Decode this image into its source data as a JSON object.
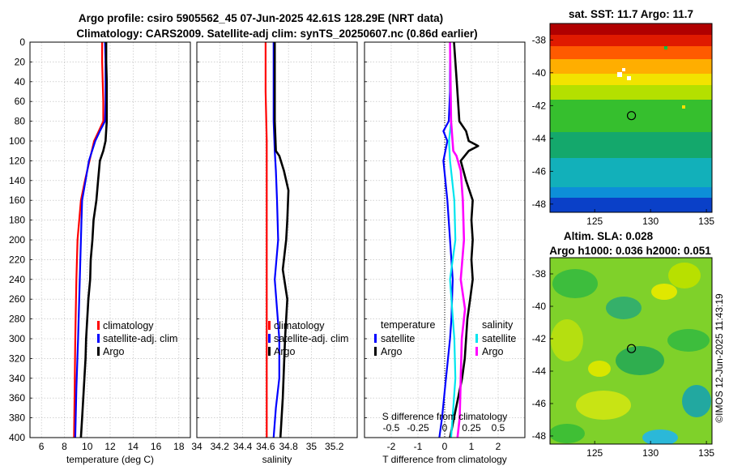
{
  "header": {
    "title_line1": "Argo profile: csiro 5905562_45 07-Jun-2025 42.61S 128.29E (NRT data)",
    "title_line2": "Climatology: CARS2009. Satellite-adj clim: synTS_20250607.nc (0.86d earlier)"
  },
  "colors": {
    "climatology": "#ff0000",
    "satellite": "#0000ff",
    "argo": "#000000",
    "s_satellite": "#00e5ee",
    "s_argo": "#ff00ff"
  },
  "chart_data": [
    {
      "type": "line",
      "id": "temperature",
      "xlabel": "temperature (deg C)",
      "ylabel": "",
      "xlim": [
        5,
        19
      ],
      "ylim": [
        0,
        400
      ],
      "y_reversed": true,
      "x_ticks": [
        6,
        8,
        10,
        12,
        14,
        16,
        18
      ],
      "y_ticks": [
        0,
        20,
        40,
        60,
        80,
        100,
        120,
        140,
        160,
        180,
        200,
        220,
        240,
        260,
        280,
        300,
        320,
        340,
        360,
        380,
        400
      ],
      "grid": true,
      "legend": {
        "position": "lower-right",
        "entries": [
          "climatology",
          "satellite-adj. clim",
          "Argo"
        ]
      },
      "series": [
        {
          "name": "climatology",
          "color": "#ff0000",
          "depth": [
            0,
            20,
            40,
            60,
            80,
            90,
            100,
            120,
            140,
            160,
            180,
            200,
            240,
            300,
            350,
            400
          ],
          "values": [
            11.3,
            11.3,
            11.35,
            11.4,
            11.4,
            11.0,
            10.6,
            10.2,
            9.8,
            9.45,
            9.3,
            9.15,
            9.05,
            8.95,
            8.9,
            8.85
          ]
        },
        {
          "name": "satellite-adj. clim",
          "color": "#0000ff",
          "depth": [
            0,
            20,
            40,
            60,
            80,
            90,
            100,
            120,
            140,
            160,
            180,
            200,
            240,
            300,
            350,
            400
          ],
          "values": [
            11.55,
            11.6,
            11.6,
            11.6,
            11.55,
            11.1,
            10.7,
            10.15,
            9.85,
            9.55,
            9.5,
            9.45,
            9.35,
            9.2,
            9.05,
            8.95
          ]
        },
        {
          "name": "Argo",
          "color": "#000000",
          "depth": [
            0,
            20,
            40,
            60,
            80,
            100,
            110,
            120,
            140,
            160,
            180,
            200,
            220,
            240,
            260,
            280,
            300,
            320,
            340,
            360,
            380,
            400
          ],
          "values": [
            11.65,
            11.65,
            11.7,
            11.7,
            11.7,
            11.6,
            11.4,
            11.1,
            10.95,
            10.8,
            10.55,
            10.45,
            10.3,
            10.25,
            10.1,
            10.0,
            9.9,
            9.85,
            9.75,
            9.65,
            9.55,
            9.45
          ]
        }
      ]
    },
    {
      "type": "line",
      "id": "salinity",
      "xlabel": "salinity",
      "ylabel": "",
      "xlim": [
        34,
        35.4
      ],
      "ylim": [
        0,
        400
      ],
      "y_reversed": true,
      "x_ticks": [
        34,
        34.2,
        34.4,
        34.6,
        34.8,
        35,
        35.2
      ],
      "x_tick_labels": [
        "34",
        "34.2",
        "34.4",
        "34.6",
        "34.8",
        "35",
        "35.2"
      ],
      "grid": true,
      "legend": {
        "position": "lower-right",
        "entries": [
          "climatology",
          "satellite-adj. clim",
          "Argo"
        ]
      },
      "series": [
        {
          "name": "climatology",
          "color": "#ff0000",
          "depth": [
            0,
            50,
            100,
            150,
            200,
            250,
            300,
            350,
            400
          ],
          "values": [
            34.6,
            34.6,
            34.61,
            34.61,
            34.61,
            34.61,
            34.61,
            34.61,
            34.61
          ]
        },
        {
          "name": "satellite-adj. clim",
          "color": "#0000ff",
          "depth": [
            0,
            40,
            80,
            110,
            130,
            160,
            200,
            240,
            270,
            300,
            340,
            370,
            400
          ],
          "values": [
            34.67,
            34.67,
            34.67,
            34.68,
            34.69,
            34.7,
            34.71,
            34.68,
            34.7,
            34.72,
            34.72,
            34.69,
            34.67
          ]
        },
        {
          "name": "Argo",
          "color": "#000000",
          "depth": [
            0,
            40,
            80,
            110,
            115,
            130,
            150,
            180,
            200,
            230,
            260,
            300,
            330,
            360,
            400
          ],
          "values": [
            34.68,
            34.68,
            34.68,
            34.69,
            34.72,
            34.76,
            34.8,
            34.79,
            34.78,
            34.75,
            34.79,
            34.77,
            34.76,
            34.75,
            34.73
          ]
        }
      ]
    },
    {
      "type": "line",
      "id": "difference",
      "xlabel": "T difference from climatology",
      "xlabel_top": "S difference from climatology",
      "xlim": [
        -3,
        3
      ],
      "ylim": [
        0,
        400
      ],
      "y_reversed": true,
      "x_ticks": [
        -2,
        -1,
        0,
        1,
        2
      ],
      "x_tick_labels": [
        "-2",
        "-1",
        "0",
        "1",
        "2"
      ],
      "s_ticks": [
        -0.5,
        -0.25,
        0,
        0.25,
        0.5
      ],
      "s_tick_labels": [
        "-0.5",
        "-0.25",
        "0",
        "0.25",
        "0.5"
      ],
      "grid": true,
      "legend": {
        "position": "lower",
        "temperature_heading": "temperature",
        "salinity_heading": "salinity",
        "temperature_entries": [
          "satellite",
          "Argo"
        ],
        "salinity_entries": [
          "satellite",
          "Argo"
        ]
      },
      "series": [
        {
          "name": "T satellite",
          "color": "#0000ff",
          "depth": [
            0,
            50,
            80,
            90,
            100,
            120,
            160,
            200,
            240,
            280,
            300,
            340,
            380,
            400
          ],
          "values": [
            0.2,
            0.2,
            0.15,
            -0.05,
            0.1,
            -0.05,
            0.1,
            0.2,
            0.3,
            0.25,
            0.2,
            0.05,
            -0.1,
            -0.2
          ]
        },
        {
          "name": "T Argo",
          "color": "#000000",
          "depth": [
            0,
            20,
            40,
            60,
            80,
            90,
            100,
            105,
            110,
            120,
            140,
            160,
            180,
            200,
            220,
            240,
            260,
            280,
            300,
            320,
            340,
            360,
            380,
            400
          ],
          "values": [
            0.35,
            0.4,
            0.45,
            0.5,
            0.55,
            0.8,
            0.9,
            1.25,
            0.9,
            0.6,
            0.8,
            1.05,
            1.0,
            1.05,
            1.0,
            1.05,
            0.95,
            0.85,
            0.8,
            0.75,
            0.65,
            0.5,
            0.35,
            0.2
          ]
        },
        {
          "name": "S satellite",
          "color": "#00e5ee",
          "depth": [
            0,
            80,
            100,
            120,
            160,
            200,
            240,
            270,
            300,
            340,
            370,
            400
          ],
          "values": [
            0.05,
            0.06,
            0.04,
            0.05,
            0.09,
            0.1,
            0.05,
            0.07,
            0.09,
            0.1,
            0.08,
            0.06
          ]
        },
        {
          "name": "S Argo",
          "color": "#ff00ff",
          "depth": [
            0,
            80,
            110,
            115,
            130,
            160,
            200,
            240,
            270,
            300,
            340,
            380,
            400
          ],
          "values": [
            0.05,
            0.06,
            0.08,
            0.11,
            0.15,
            0.17,
            0.18,
            0.15,
            0.19,
            0.16,
            0.15,
            0.14,
            0.12
          ]
        }
      ]
    },
    {
      "type": "heatmap",
      "id": "sst_map",
      "title": "sat. SST: 11.7 Argo: 11.7",
      "xlim": [
        121,
        135.5
      ],
      "ylim": [
        -48.5,
        -37
      ],
      "x_ticks": [
        125,
        130,
        135
      ],
      "y_ticks": [
        -38,
        -40,
        -42,
        -44,
        -46,
        -48
      ],
      "marker": {
        "lon": 128.29,
        "lat": -42.61
      }
    },
    {
      "type": "heatmap",
      "id": "sla_map",
      "title_line1": "Altim. SLA: 0.028",
      "title_line2": "Argo h1000: 0.036 h2000: 0.051",
      "xlim": [
        121,
        135.5
      ],
      "ylim": [
        -48.5,
        -37
      ],
      "x_ticks": [
        125,
        130,
        135
      ],
      "y_ticks": [
        -38,
        -40,
        -42,
        -44,
        -46,
        -48
      ],
      "marker": {
        "lon": 128.29,
        "lat": -42.61
      }
    }
  ],
  "footer": {
    "credit": "©IMOS 12-Jun-2025 11:43:19"
  }
}
